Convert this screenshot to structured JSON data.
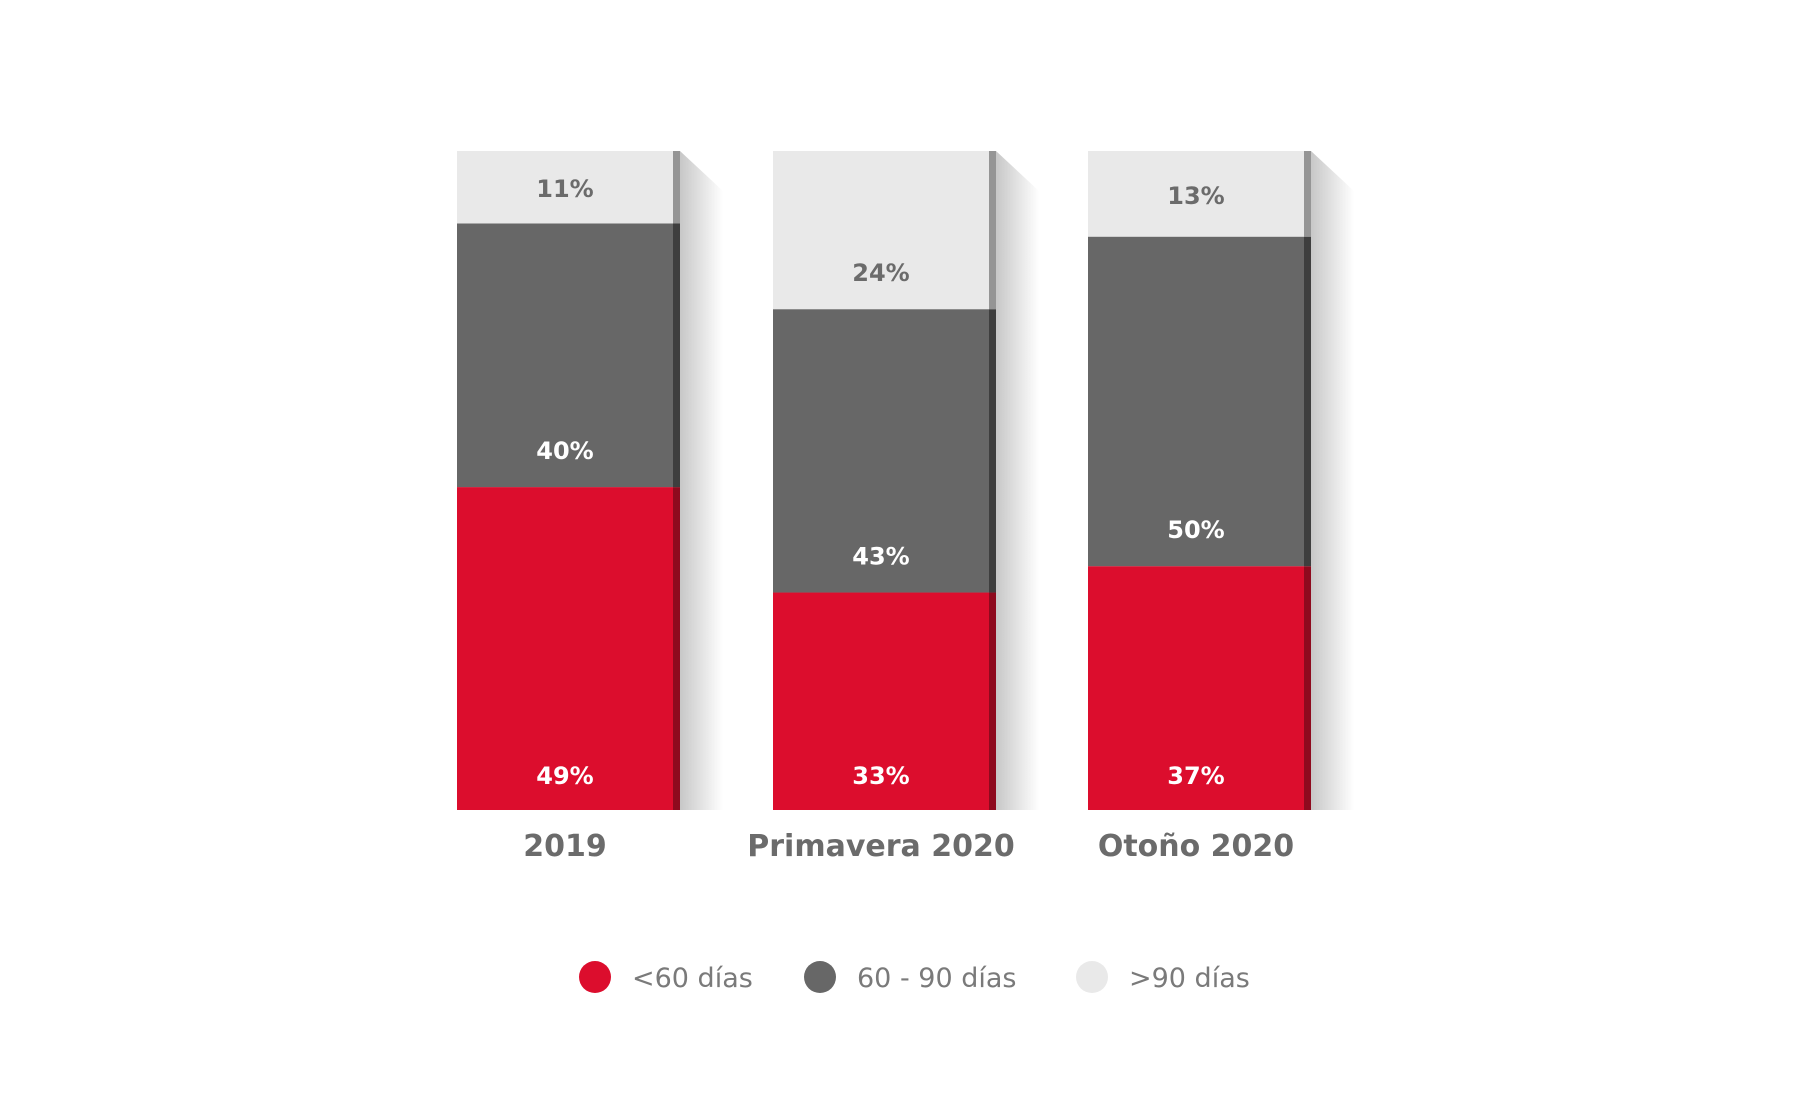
{
  "chart_data": {
    "type": "bar",
    "stacked": true,
    "title": "",
    "xlabel": "",
    "ylabel": "",
    "ylim": [
      0,
      100
    ],
    "grid": false,
    "categories": [
      "2019",
      "Primavera 2020",
      "Otoño 2020"
    ],
    "series": [
      {
        "name": "<60 días",
        "color": "#dc0d2d",
        "label_color": "#ffffff",
        "values": [
          49,
          33,
          37
        ],
        "labels": [
          "49%",
          "33%",
          "37%"
        ]
      },
      {
        "name": "60 - 90 días",
        "color": "#676767",
        "label_color": "#ffffff",
        "values": [
          40,
          43,
          50
        ],
        "labels": [
          "40%",
          "43%",
          "50%"
        ]
      },
      {
        "name": ">90 días",
        "color": "#e9e9e9",
        "label_color": "#6b6b6b",
        "values": [
          11,
          24,
          13
        ],
        "labels": [
          "11%",
          "24%",
          "13%"
        ]
      }
    ],
    "legend_position": "bottom"
  }
}
